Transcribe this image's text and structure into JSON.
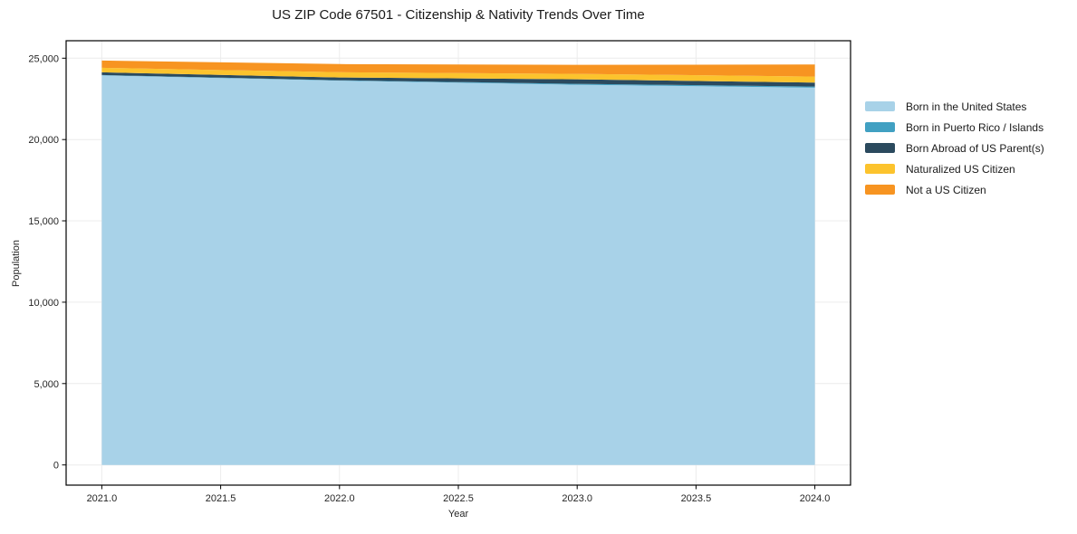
{
  "title": "US ZIP Code 67501 - Citizenship & Nativity Trends Over Time",
  "chart_data": {
    "type": "area",
    "stacked": true,
    "title": "US ZIP Code 67501 - Citizenship & Nativity Trends Over Time",
    "xlabel": "Year",
    "ylabel": "Population",
    "x": [
      2021,
      2022,
      2023,
      2024
    ],
    "series": [
      {
        "name": "Born in the United States",
        "color": "#a8d2e8",
        "values": [
          23940,
          23620,
          23370,
          23185
        ]
      },
      {
        "name": "Born in Puerto Rico / Islands",
        "color": "#41a0c2",
        "values": [
          25,
          20,
          55,
          70
        ]
      },
      {
        "name": "Born Abroad of US Parent(s)",
        "color": "#2b4a5e",
        "values": [
          165,
          175,
          275,
          240
        ]
      },
      {
        "name": "Naturalized US Citizen",
        "color": "#fcc32d",
        "values": [
          280,
          320,
          335,
          375
        ]
      },
      {
        "name": "Not a US Citizen",
        "color": "#f79421",
        "values": [
          445,
          500,
          555,
          740
        ]
      }
    ],
    "totals": [
      24855,
      24635,
      24590,
      24610
    ],
    "xlim": [
      2020.85,
      2024.15
    ],
    "ylim": [
      -1242,
      26072
    ],
    "xticks": {
      "values": [
        2021.0,
        2021.5,
        2022.0,
        2022.5,
        2023.0,
        2023.5,
        2024.0
      ],
      "labels": [
        "2021.0",
        "2021.5",
        "2022.0",
        "2022.5",
        "2023.0",
        "2023.5",
        "2024.0"
      ]
    },
    "yticks": {
      "values": [
        0,
        5000,
        10000,
        15000,
        20000,
        25000
      ],
      "labels": [
        "0",
        "5,000",
        "10,000",
        "15,000",
        "20,000",
        "25,000"
      ]
    },
    "grid": true,
    "grid_color": "#ececec",
    "spine_color": "#000000",
    "legend_position": "right"
  }
}
